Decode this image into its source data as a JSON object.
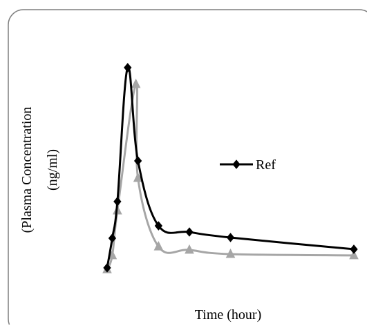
{
  "chart_data": {
    "type": "line",
    "x_label": "Time (hour)",
    "y_label": [
      "(Plasma Concentration",
      "(ng/ml)"
    ],
    "xlim": [
      0,
      12
    ],
    "ylim": [
      0,
      100
    ],
    "series": [
      {
        "name": "Ref",
        "color": "#000000",
        "marker": "diamond",
        "x": [
          0,
          0.25,
          0.5,
          1,
          1.5,
          2.5,
          4,
          6,
          12
        ],
        "values": [
          3.8,
          17.2,
          33.8,
          94.4,
          52.2,
          22.8,
          20,
          17.5,
          12.2
        ]
      },
      {
        "color": "#a6a6a6",
        "marker": "triangle",
        "x": [
          0,
          0.25,
          0.5,
          1.4,
          1.5,
          2.5,
          4,
          6,
          12
        ],
        "values": [
          3.1,
          9.4,
          29.7,
          86.9,
          44.4,
          13.4,
          11.9,
          10,
          9.4
        ]
      }
    ],
    "legend": "right"
  }
}
